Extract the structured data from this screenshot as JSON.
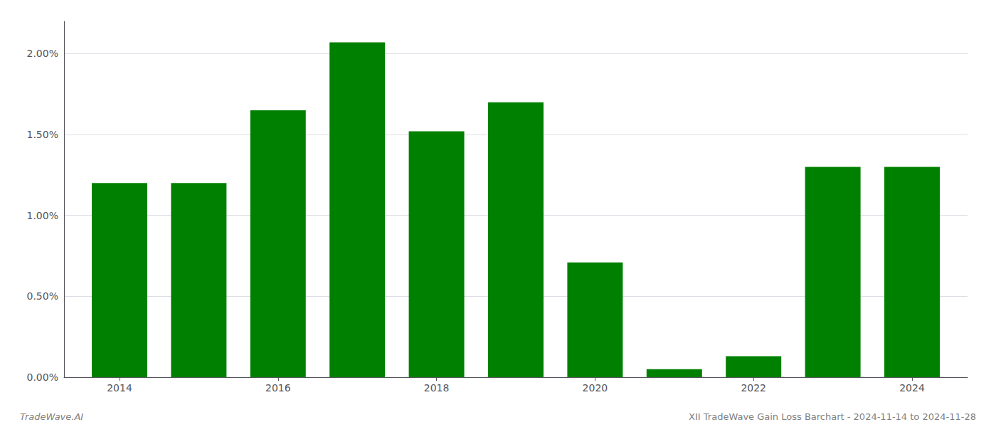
{
  "chart_data": {
    "type": "bar",
    "x": [
      2014,
      2015,
      2016,
      2017,
      2018,
      2019,
      2020,
      2021,
      2022,
      2023,
      2024
    ],
    "values": [
      0.012,
      0.012,
      0.0165,
      0.0207,
      0.0152,
      0.017,
      0.0071,
      0.0005,
      0.0013,
      0.013,
      0.013
    ],
    "color": "#008000",
    "xlim": [
      2013.3,
      2024.7
    ],
    "xticks": [
      2014,
      2016,
      2018,
      2020,
      2022,
      2024
    ],
    "ylim": [
      0.0,
      0.022
    ],
    "yticks": [
      {
        "value": 0.0,
        "label": "0.00%"
      },
      {
        "value": 0.005,
        "label": "0.50%"
      },
      {
        "value": 0.01,
        "label": "1.00%"
      },
      {
        "value": 0.015,
        "label": "1.50%"
      },
      {
        "value": 0.02,
        "label": "2.00%"
      }
    ],
    "grid": true,
    "annotations": [
      "TradeWave.AI",
      "XII TradeWave Gain Loss Barchart - 2024-11-14 to 2024-11-28"
    ]
  }
}
